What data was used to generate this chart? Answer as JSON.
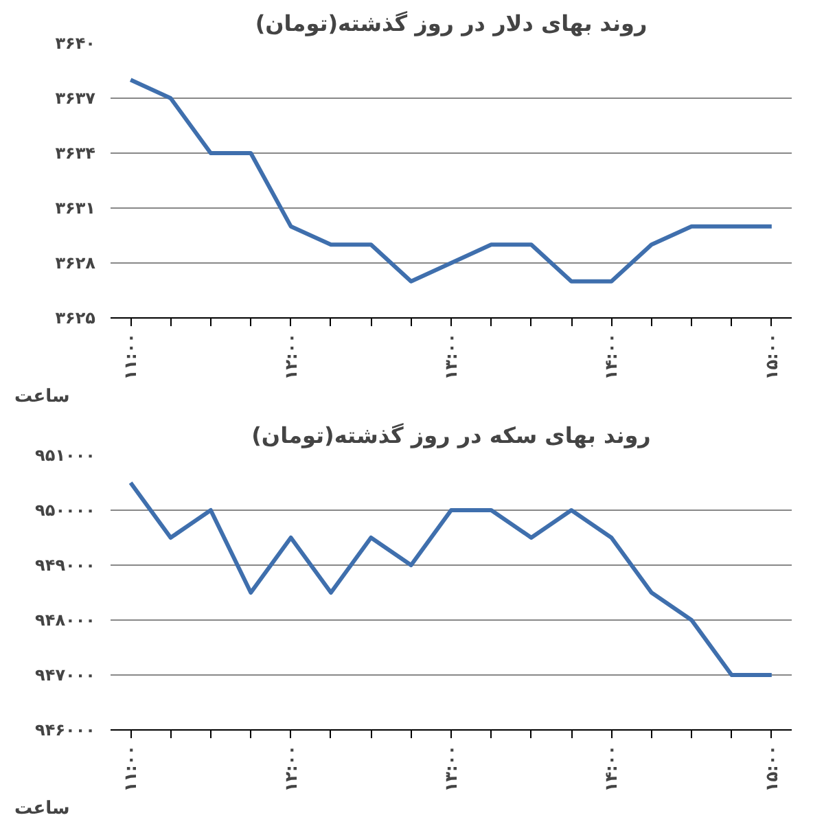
{
  "chart_data": [
    {
      "type": "line",
      "title": "روند بهای دلار در روز گذشته(تومان)",
      "xlabel": "ساعت",
      "categories": [
        "۱۱:۰۰",
        null,
        null,
        null,
        "۱۲:۰۰",
        null,
        null,
        null,
        "۱۳:۰۰",
        null,
        null,
        null,
        "۱۴:۰۰",
        null,
        null,
        null,
        "۱۵:۰۰"
      ],
      "series": [
        {
          "color": "#3f6fad",
          "values": [
            3638,
            3637,
            3634,
            3634,
            3630,
            3629,
            3629,
            3627,
            3628,
            3629,
            3629,
            3627,
            3627,
            3629,
            3630,
            3630,
            3630
          ]
        }
      ],
      "ylim": [
        3625,
        3640
      ],
      "yticks": [
        {
          "value": 3625,
          "label": "۳۶۲۵"
        },
        {
          "value": 3628,
          "label": "۳۶۲۸"
        },
        {
          "value": 3631,
          "label": "۳۶۳۱"
        },
        {
          "value": 3634,
          "label": "۳۶۳۴"
        },
        {
          "value": 3637,
          "label": "۳۶۳۷"
        },
        {
          "value": 3640,
          "label": "۳۶۴۰"
        }
      ],
      "grid": "y",
      "line_style": "solid"
    },
    {
      "type": "line",
      "title": "روند بهای سکه در روز گذشته(تومان)",
      "xlabel": "ساعت",
      "categories": [
        "۱۱:۰۰",
        null,
        null,
        null,
        "۱۲:۰۰",
        null,
        null,
        null,
        "۱۳:۰۰",
        null,
        null,
        null,
        "۱۴:۰۰",
        null,
        null,
        null,
        "۱۵:۰۰"
      ],
      "series": [
        {
          "color": "#3f6fad",
          "values": [
            950500,
            949500,
            950000,
            948500,
            949500,
            948500,
            949500,
            949000,
            950000,
            950000,
            949500,
            950000,
            949500,
            948500,
            948000,
            947000,
            947000
          ]
        }
      ],
      "ylim": [
        946000,
        951000
      ],
      "yticks": [
        {
          "value": 946000,
          "label": "۹۴۶۰۰۰"
        },
        {
          "value": 947000,
          "label": "۹۴۷۰۰۰"
        },
        {
          "value": 948000,
          "label": "۹۴۸۰۰۰"
        },
        {
          "value": 949000,
          "label": "۹۴۹۰۰۰"
        },
        {
          "value": 950000,
          "label": "۹۵۰۰۰۰"
        },
        {
          "value": 951000,
          "label": "۹۵۱۰۰۰"
        }
      ],
      "grid": "y",
      "line_style": "solid"
    }
  ]
}
